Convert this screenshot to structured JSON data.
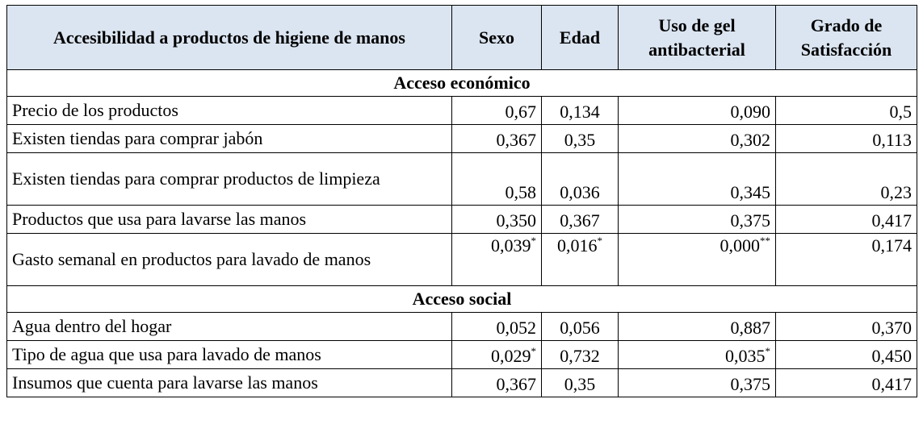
{
  "header": {
    "label": "Accesibilidad a productos de higiene de manos",
    "sexo": "Sexo",
    "edad": "Edad",
    "gel": "Uso de gel antibacterial",
    "satisfaccion": "Grado de Satisfacción"
  },
  "sections": [
    {
      "title": "Acceso económico",
      "rows": [
        {
          "label": "Precio de los productos",
          "sexo": "0,67",
          "edad": "0,134",
          "gel": "0,090",
          "sat": "0,5"
        },
        {
          "label": "Existen tiendas para comprar jabón",
          "sexo": "0,367",
          "edad": "0,35",
          "gel": "0,302",
          "sat": "0,113"
        },
        {
          "label": "Existen tiendas para comprar productos de limpieza",
          "sexo": "0,58",
          "edad": "0,036",
          "gel": "0,345",
          "sat": "0,23"
        },
        {
          "label": "Productos que usa para lavarse las manos",
          "sexo": "0,350",
          "edad": "0,367",
          "gel": "0,375",
          "sat": "0,417"
        },
        {
          "label": "Gasto semanal en productos para lavado de manos",
          "sexo": "0,039",
          "sexo_sup": "*",
          "edad": "0,016",
          "edad_sup": "*",
          "gel": "0,000",
          "gel_sup": "**",
          "sat": "0,174"
        }
      ]
    },
    {
      "title": "Acceso social",
      "rows": [
        {
          "label": "Agua dentro del hogar",
          "sexo": "0,052",
          "edad": "0,056",
          "gel": "0,887",
          "sat": "0,370"
        },
        {
          "label": "Tipo de agua que usa para lavado de manos",
          "sexo": "0,029",
          "sexo_sup": "*",
          "edad": "0,732",
          "gel": "0,035",
          "gel_sup": "*",
          "sat": "0,450"
        },
        {
          "label": "Insumos que cuenta para lavarse las manos",
          "sexo": "0,367",
          "edad": "0,35",
          "gel": "0,375",
          "sat": "0,417"
        }
      ]
    }
  ]
}
